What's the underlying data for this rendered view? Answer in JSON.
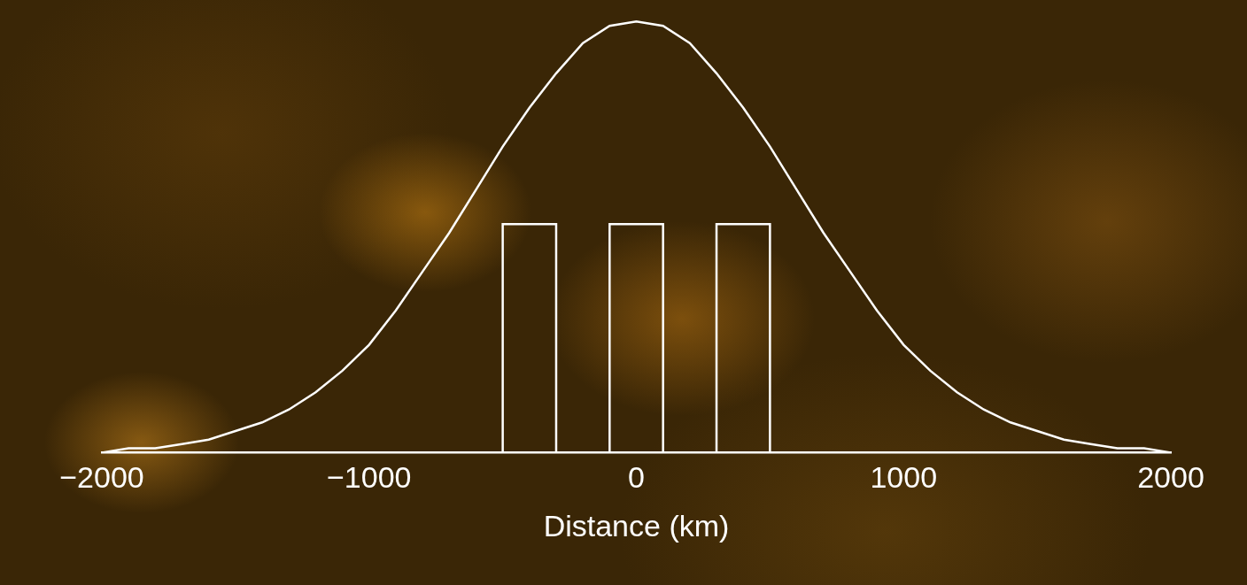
{
  "chart_data": {
    "type": "line",
    "xlabel": "Distance (km)",
    "xlim": [
      -2000,
      2000
    ],
    "xticks": [
      {
        "value": -2000,
        "label": "−2000"
      },
      {
        "value": -1000,
        "label": "−1000"
      },
      0,
      1000,
      2000
    ],
    "ylim": [
      0,
      1.05
    ],
    "tick_labels": "x",
    "grid": false,
    "series": [
      {
        "type": "line",
        "color": "#ffffff",
        "x": [
          -2000,
          -1900,
          -1800,
          -1700,
          -1600,
          -1500,
          -1400,
          -1300,
          -1200,
          -1100,
          -1000,
          -900,
          -800,
          -700,
          -600,
          -500,
          -400,
          -300,
          -200,
          -100,
          0,
          100,
          200,
          300,
          400,
          500,
          600,
          700,
          800,
          900,
          1000,
          1100,
          1200,
          1300,
          1400,
          1500,
          1600,
          1700,
          1800,
          1900,
          2000
        ],
        "values": [
          0,
          0.01,
          0.01,
          0.02,
          0.03,
          0.05,
          0.07,
          0.1,
          0.14,
          0.19,
          0.25,
          0.33,
          0.42,
          0.51,
          0.61,
          0.71,
          0.8,
          0.88,
          0.95,
          0.99,
          1.0,
          0.99,
          0.95,
          0.88,
          0.8,
          0.71,
          0.61,
          0.51,
          0.42,
          0.33,
          0.25,
          0.19,
          0.14,
          0.1,
          0.07,
          0.05,
          0.03,
          0.02,
          0.01,
          0.01,
          0
        ]
      },
      {
        "type": "line",
        "color": "#ffffff",
        "x": [
          -500,
          -500,
          -300,
          -300
        ],
        "values": [
          0,
          0.53,
          0.53,
          0
        ]
      },
      {
        "type": "line",
        "color": "#ffffff",
        "x": [
          -100,
          -100,
          100,
          100
        ],
        "values": [
          0,
          0.53,
          0.53,
          0
        ]
      },
      {
        "type": "line",
        "color": "#ffffff",
        "x": [
          300,
          300,
          500,
          500
        ],
        "values": [
          0,
          0.53,
          0.53,
          0
        ]
      }
    ]
  }
}
